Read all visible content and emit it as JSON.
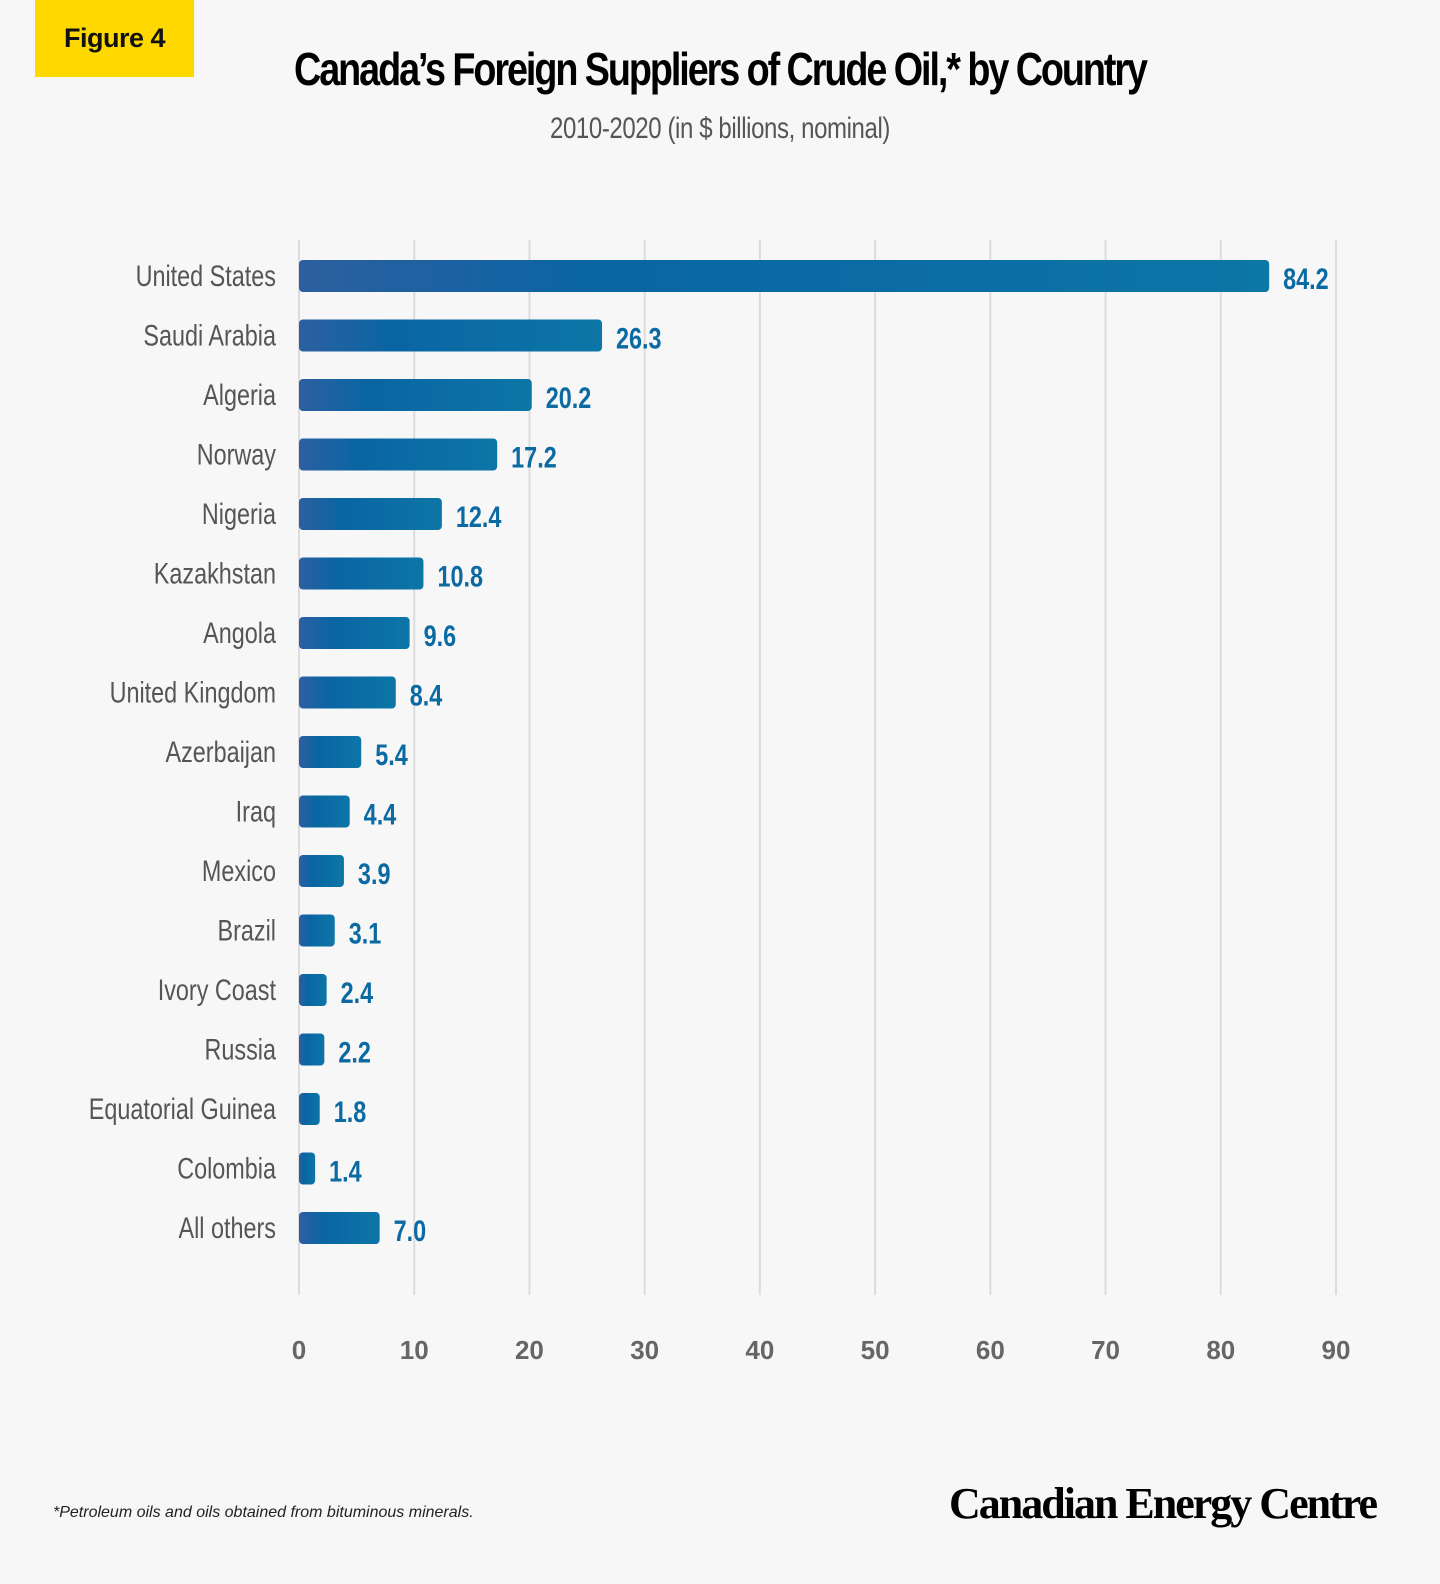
{
  "badge": "Figure 4",
  "chart_data": {
    "type": "bar",
    "orientation": "horizontal",
    "title": "Canada’s Foreign Suppliers of Crude Oil,* by Country",
    "subtitle": "2010-2020 (in $ billions, nominal)",
    "categories": [
      "United States",
      "Saudi Arabia",
      "Algeria",
      "Norway",
      "Nigeria",
      "Kazakhstan",
      "Angola",
      "United Kingdom",
      "Azerbaijan",
      "Iraq",
      "Mexico",
      "Brazil",
      "Ivory Coast",
      "Russia",
      "Equatorial Guinea",
      "Colombia",
      "All others"
    ],
    "values": [
      84.2,
      26.3,
      20.2,
      17.2,
      12.4,
      10.8,
      9.6,
      8.4,
      5.4,
      4.4,
      3.9,
      3.1,
      2.4,
      2.2,
      1.8,
      1.4,
      7.0
    ],
    "value_labels": [
      "84.2",
      "26.3",
      "20.2",
      "17.2",
      "12.4",
      "10.8",
      "9.6",
      "8.4",
      "5.4",
      "4.4",
      "3.9",
      "3.1",
      "2.4",
      "2.2",
      "1.8",
      "1.4",
      "7.0"
    ],
    "xlim": [
      0,
      90
    ],
    "xticks": [
      "0",
      "10",
      "20",
      "30",
      "40",
      "50",
      "60",
      "70",
      "80",
      "90"
    ],
    "grid": true,
    "bar_colors": [
      "#2d5fa0",
      "#0a65a3",
      "#0c76a6"
    ],
    "label_color": "#0b6aa2"
  },
  "footnote": "*Petroleum oils and oils obtained from bituminous minerals.",
  "logo": "Canadian Energy Centre"
}
